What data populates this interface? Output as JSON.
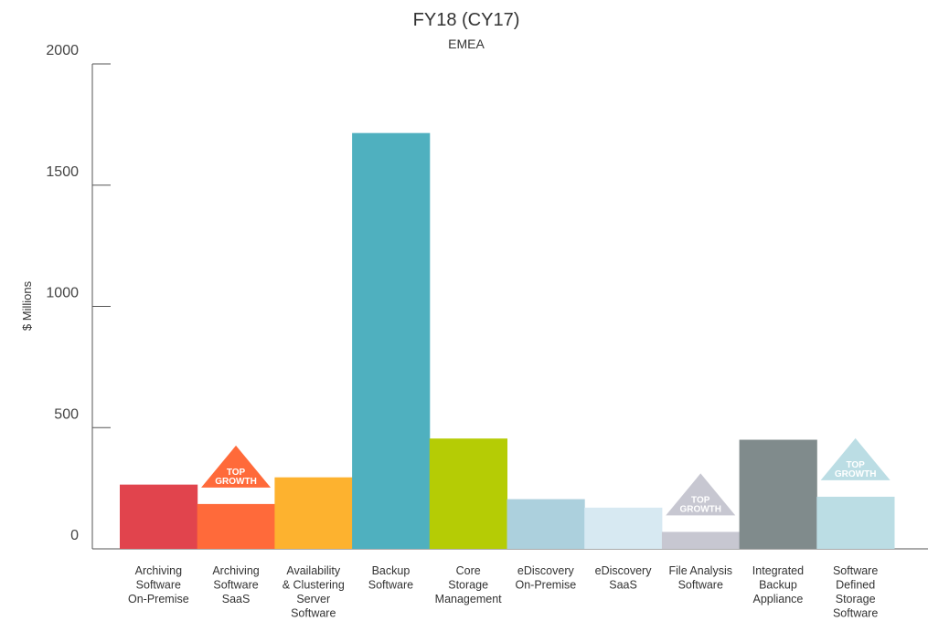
{
  "chart_data": {
    "type": "bar",
    "title": "FY18 (CY17)",
    "subtitle": "EMEA",
    "xlabel": "",
    "ylabel": "$ Millions",
    "ylim": [
      0,
      2000
    ],
    "yticks": [
      0,
      500,
      1000,
      1500,
      2000
    ],
    "grid": false,
    "categories": [
      [
        "Archiving",
        "Software",
        "On-Premise"
      ],
      [
        "Archiving",
        "Software",
        "SaaS"
      ],
      [
        "Availability",
        "& Clustering",
        "Server",
        "Software"
      ],
      [
        "Backup",
        "Software"
      ],
      [
        "Core",
        "Storage",
        "Management"
      ],
      [
        "eDiscovery",
        "On-Premise"
      ],
      [
        "eDiscovery",
        "SaaS"
      ],
      [
        "File Analysis",
        "Software"
      ],
      [
        "Integrated",
        "Backup",
        "Appliance"
      ],
      [
        "Software",
        "Defined",
        "Storage",
        "Software"
      ]
    ],
    "values": [
      265,
      185,
      295,
      1715,
      455,
      205,
      170,
      70,
      450,
      215
    ],
    "colors": [
      "#e1444d",
      "#ff6a3a",
      "#fdb22f",
      "#4fb0bf",
      "#b5cc05",
      "#acd0dd",
      "#d7e9f2",
      "#c7c7d1",
      "#808b8c",
      "#bbdde4"
    ],
    "badges": [
      {
        "category_index": 1,
        "lines": [
          "TOP",
          "GROWTH"
        ],
        "color": "#ff6a3a"
      },
      {
        "category_index": 7,
        "lines": [
          "TOP",
          "GROWTH"
        ],
        "color": "#c7c7d1"
      },
      {
        "category_index": 9,
        "lines": [
          "TOP",
          "GROWTH"
        ],
        "color": "#bbdde4"
      }
    ]
  }
}
